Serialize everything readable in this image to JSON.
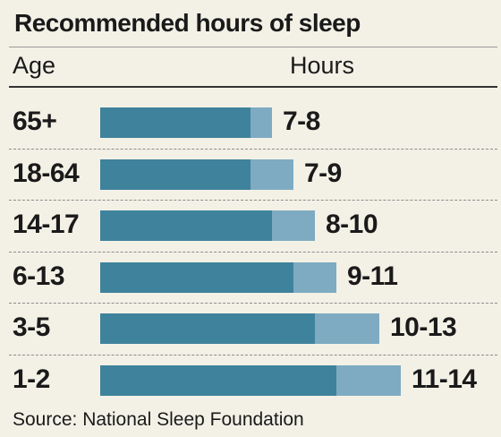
{
  "chart_data": {
    "type": "bar",
    "title": "Recommended hours of sleep",
    "xlabel": "Hours",
    "ylabel": "Age",
    "source": "Source: National Sleep Foundation",
    "categories": [
      "65+",
      "18-64",
      "14-17",
      "6-13",
      "3-5",
      "1-2"
    ],
    "ranges": [
      [
        7,
        8
      ],
      [
        7,
        9
      ],
      [
        8,
        10
      ],
      [
        9,
        11
      ],
      [
        10,
        13
      ],
      [
        11,
        14
      ]
    ],
    "labels": [
      "7-8",
      "7-9",
      "8-10",
      "9-11",
      "10-13",
      "11-14"
    ],
    "colors": {
      "min": "#3f829c",
      "range": "#7eabc2"
    },
    "grid": false
  }
}
